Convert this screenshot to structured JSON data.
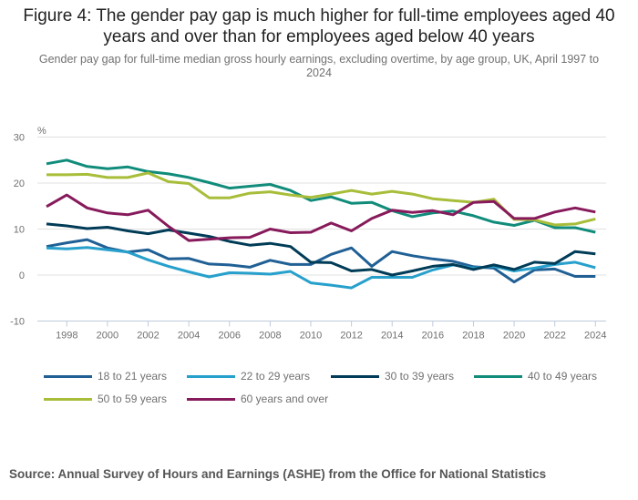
{
  "title": "Figure 4: The gender pay gap is much higher for full-time employees aged 40 years and over than for employees aged below 40 years",
  "subtitle": "Gender pay gap for full-time median gross hourly earnings, excluding overtime, by age group, UK, April 1997 to 2024",
  "source": "Source: Annual Survey of Hours and Earnings (ASHE) from the Office for National Statistics",
  "chart_data": {
    "type": "line",
    "title": "Figure 4: The gender pay gap is much higher for full-time employees aged 40 years and over than for employees aged below 40 years",
    "subtitle": "Gender pay gap for full-time median gross hourly earnings, excluding overtime, by age group, UK, April 1997 to 2024",
    "xlabel": "",
    "ylabel": "%",
    "ylim": [
      -10,
      30
    ],
    "yticks": [
      -10,
      0,
      10,
      20,
      30
    ],
    "ytick_labels": [
      "-10",
      "0",
      "10",
      "20",
      "30"
    ],
    "xlim": [
      1997,
      2024
    ],
    "xticks": [
      1998,
      2000,
      2002,
      2004,
      2006,
      2008,
      2010,
      2012,
      2014,
      2016,
      2018,
      2020,
      2022,
      2024
    ],
    "xtick_labels": [
      "1998",
      "2000",
      "2002",
      "2004",
      "2006",
      "2008",
      "2010",
      "2012",
      "2014",
      "2016",
      "2018",
      "2020",
      "2022",
      "2024"
    ],
    "grid": true,
    "legend_position": "bottom",
    "x": [
      1997,
      1998,
      1999,
      2000,
      2001,
      2002,
      2003,
      2004,
      2005,
      2006,
      2007,
      2008,
      2009,
      2010,
      2011,
      2012,
      2013,
      2014,
      2015,
      2016,
      2017,
      2018,
      2019,
      2020,
      2021,
      2022,
      2023,
      2024
    ],
    "series": [
      {
        "name": "18 to 21 years",
        "color": "#206095",
        "values": [
          6.2,
          7.0,
          7.7,
          5.9,
          5.0,
          5.5,
          3.5,
          3.6,
          2.4,
          2.2,
          1.7,
          3.2,
          2.3,
          2.3,
          4.5,
          5.9,
          1.9,
          5.1,
          4.2,
          3.5,
          3.0,
          1.8,
          1.5,
          -1.5,
          1.1,
          1.3,
          -0.3,
          -0.3
        ]
      },
      {
        "name": "22 to 29 years",
        "color": "#27a0cc",
        "values": [
          5.9,
          5.7,
          6.0,
          5.5,
          5.0,
          3.3,
          1.9,
          0.7,
          -0.4,
          0.5,
          0.4,
          0.2,
          0.8,
          -1.7,
          -2.2,
          -2.8,
          -0.5,
          -0.5,
          -0.5,
          1.1,
          2.2,
          1.5,
          1.9,
          0.9,
          1.5,
          2.3,
          2.8,
          1.6
        ]
      },
      {
        "name": "30 to 39 years",
        "color": "#003c57",
        "values": [
          11.1,
          10.7,
          10.1,
          10.4,
          9.6,
          9.0,
          9.8,
          9.1,
          8.4,
          7.3,
          6.5,
          6.9,
          6.2,
          2.8,
          2.7,
          0.9,
          1.2,
          0.0,
          0.9,
          1.9,
          2.3,
          1.2,
          2.2,
          1.2,
          2.8,
          2.5,
          5.1,
          4.6
        ]
      },
      {
        "name": "40 to 49 years",
        "color": "#118c7b",
        "values": [
          24.2,
          25.0,
          23.6,
          23.1,
          23.5,
          22.5,
          22.0,
          21.2,
          20.1,
          18.9,
          19.3,
          19.7,
          18.4,
          16.2,
          17.0,
          15.6,
          15.8,
          14.0,
          12.7,
          13.5,
          13.9,
          12.9,
          11.5,
          10.8,
          11.9,
          10.3,
          10.3,
          9.3
        ]
      },
      {
        "name": "50 to 59 years",
        "color": "#a8bd3a",
        "values": [
          21.8,
          21.8,
          21.9,
          21.2,
          21.2,
          22.2,
          20.3,
          19.9,
          16.8,
          16.8,
          17.8,
          18.1,
          17.4,
          16.9,
          17.6,
          18.4,
          17.6,
          18.2,
          17.6,
          16.6,
          16.2,
          15.8,
          16.5,
          12.1,
          12.0,
          10.9,
          11.1,
          12.2
        ]
      },
      {
        "name": "60 years and over",
        "color": "#871a5b",
        "values": [
          14.9,
          17.4,
          14.6,
          13.5,
          13.1,
          14.1,
          10.6,
          7.5,
          7.8,
          8.1,
          8.2,
          10.0,
          9.2,
          9.3,
          11.3,
          9.6,
          12.3,
          14.1,
          13.6,
          14.0,
          13.1,
          15.8,
          16.0,
          12.3,
          12.3,
          13.7,
          14.6,
          13.7
        ]
      }
    ]
  }
}
